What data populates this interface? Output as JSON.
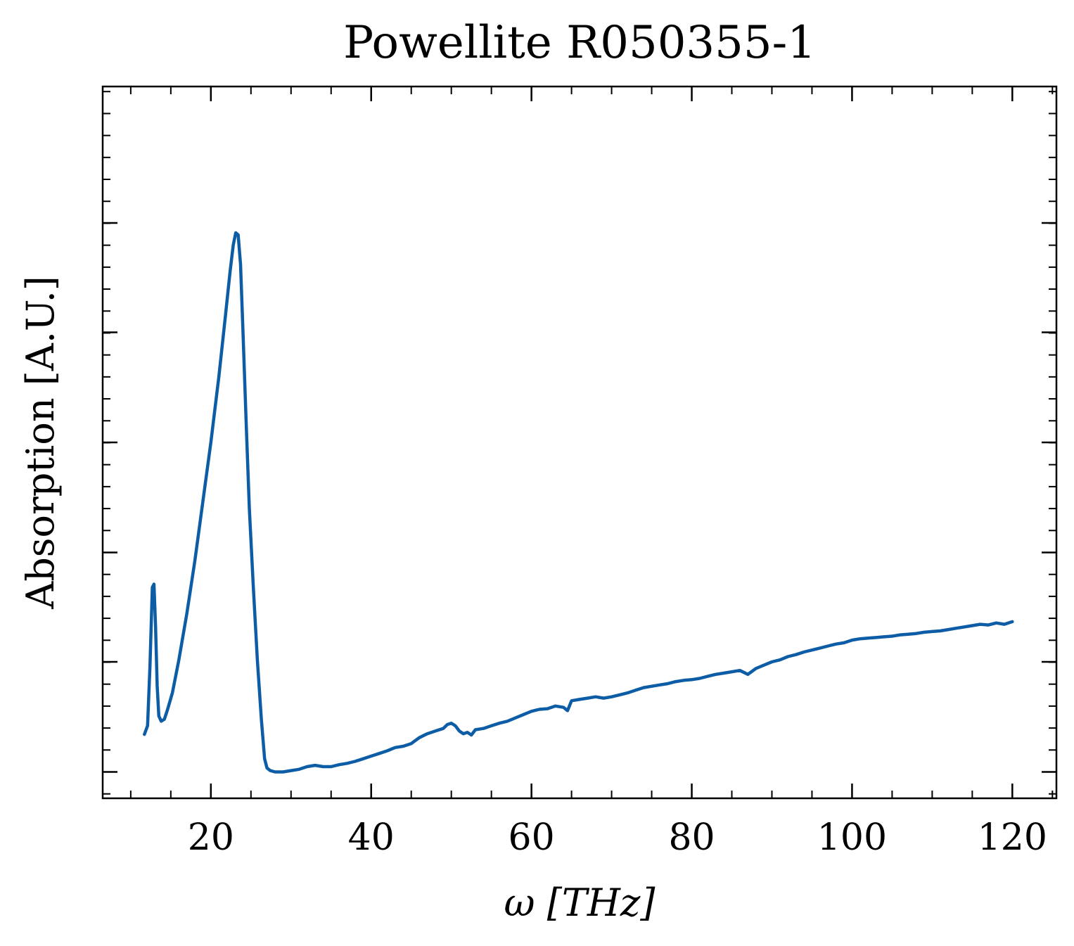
{
  "chart_data": {
    "type": "line",
    "title": "Powellite R050355-1",
    "xlabel": "ω [THz]",
    "ylabel": "Absorption [A.U.]",
    "xlim": [
      6.5,
      125.5
    ],
    "ylim": [
      -0.04,
      1.04
    ],
    "x_ticks": [
      20,
      40,
      60,
      80,
      100,
      120
    ],
    "x_tick_labels": [
      "20",
      "40",
      "60",
      "80",
      "100",
      "120"
    ],
    "x_minor_step": 5,
    "y_ticks": [
      0.0,
      0.167,
      0.333,
      0.5,
      0.667,
      0.833
    ],
    "y_tick_labels": [],
    "y_minor_step": 0.0333,
    "grid": false,
    "line_color": "#0C5DA5",
    "series": [
      {
        "name": "",
        "x": [
          11.7,
          12.1,
          12.4,
          12.7,
          12.9,
          13.1,
          13.3,
          13.5,
          13.8,
          14.2,
          14.6,
          15.2,
          16.0,
          17.0,
          18.0,
          19.0,
          20.0,
          21.0,
          21.8,
          22.4,
          22.8,
          23.1,
          23.4,
          23.7,
          24.0,
          24.4,
          24.8,
          25.3,
          25.8,
          26.3,
          26.7,
          27.0,
          27.4,
          28.0,
          29.0,
          30.0,
          31.0,
          32.0,
          33.0,
          34.0,
          35.0,
          36.0,
          37.0,
          38.0,
          39.0,
          40.0,
          41.0,
          42.0,
          43.0,
          44.0,
          45.0,
          46.0,
          47.0,
          48.0,
          49.0,
          49.5,
          50.0,
          50.5,
          51.0,
          51.5,
          52.0,
          52.5,
          53.0,
          54.0,
          55.0,
          56.0,
          57.0,
          58.0,
          59.0,
          60.0,
          61.0,
          62.0,
          63.0,
          64.0,
          64.5,
          65.0,
          66.0,
          67.0,
          68.0,
          69.0,
          70.0,
          71.0,
          72.0,
          73.0,
          74.0,
          75.0,
          76.0,
          77.0,
          78.0,
          79.0,
          80.0,
          81.0,
          82.0,
          83.0,
          84.0,
          85.0,
          86.0,
          87.0,
          88.0,
          89.0,
          90.0,
          91.0,
          92.0,
          93.0,
          94.0,
          95.0,
          96.0,
          97.0,
          98.0,
          99.0,
          100.0,
          101.0,
          102.0,
          103.0,
          104.0,
          105.0,
          106.0,
          107.0,
          108.0,
          109.0,
          110.0,
          111.0,
          112.0,
          113.0,
          114.0,
          115.0,
          116.0,
          117.0,
          118.0,
          119.0,
          120.0
        ],
        "y": [
          0.057,
          0.07,
          0.16,
          0.28,
          0.285,
          0.22,
          0.13,
          0.085,
          0.077,
          0.08,
          0.095,
          0.12,
          0.17,
          0.24,
          0.32,
          0.41,
          0.5,
          0.6,
          0.69,
          0.76,
          0.8,
          0.818,
          0.815,
          0.77,
          0.67,
          0.53,
          0.4,
          0.28,
          0.17,
          0.08,
          0.02,
          0.006,
          0.002,
          0.0,
          0.0,
          0.002,
          0.004,
          0.008,
          0.01,
          0.008,
          0.008,
          0.011,
          0.013,
          0.016,
          0.02,
          0.024,
          0.028,
          0.032,
          0.037,
          0.039,
          0.043,
          0.052,
          0.058,
          0.062,
          0.066,
          0.072,
          0.074,
          0.07,
          0.062,
          0.058,
          0.06,
          0.056,
          0.064,
          0.066,
          0.07,
          0.074,
          0.077,
          0.082,
          0.087,
          0.092,
          0.095,
          0.096,
          0.1,
          0.098,
          0.093,
          0.108,
          0.11,
          0.112,
          0.114,
          0.112,
          0.114,
          0.117,
          0.12,
          0.124,
          0.128,
          0.13,
          0.132,
          0.134,
          0.137,
          0.139,
          0.14,
          0.142,
          0.145,
          0.148,
          0.15,
          0.152,
          0.154,
          0.148,
          0.157,
          0.162,
          0.167,
          0.17,
          0.175,
          0.178,
          0.182,
          0.185,
          0.188,
          0.191,
          0.194,
          0.196,
          0.2,
          0.202,
          0.203,
          0.204,
          0.205,
          0.206,
          0.208,
          0.209,
          0.21,
          0.212,
          0.213,
          0.214,
          0.216,
          0.218,
          0.22,
          0.222,
          0.224,
          0.223,
          0.226,
          0.224,
          0.228
        ]
      }
    ]
  }
}
